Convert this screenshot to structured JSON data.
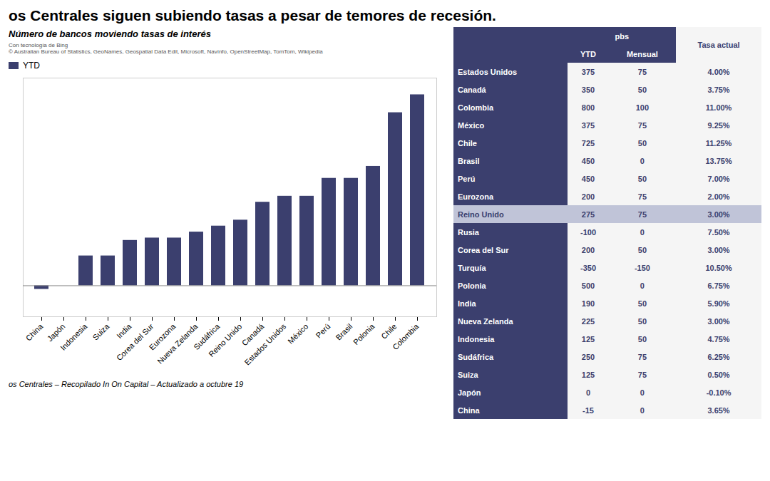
{
  "chart_data": [
    {
      "type": "bar",
      "title": "os Centrales siguen subiendo tasas a pesar de temores de recesión.",
      "subtitle": "Número de bancos moviendo tasas de interés",
      "caption": "os Centrales – Recopilado In On Capital – Actualizado a octubre 19",
      "annotations": [
        "Con tecnología de Bing\n© Australian Bureau of Statistics, GeoNames, Geospatial Data Edit, Microsoft, Navínfo, OpenStreetMap, TomTom, Wikipedia"
      ],
      "categories": [
        "China",
        "Japón",
        "Indonesia",
        "Suiza",
        "India",
        "Corea del Sur",
        "Eurozona",
        "Nueva Zelanda",
        "Sudáfrica",
        "Reino Unido",
        "Canadá",
        "Estados Unidos",
        "México",
        "Perú",
        "Brasil",
        "Polonia",
        "Chile",
        "Colombia"
      ],
      "series": [
        {
          "name": "YTD",
          "color": "#3b3f6e",
          "values": [
            -15,
            0,
            125,
            125,
            190,
            200,
            200,
            225,
            250,
            275,
            350,
            375,
            375,
            450,
            450,
            500,
            725,
            800
          ]
        }
      ],
      "ylim": [
        -130,
        870
      ],
      "tick_labels": "x",
      "legend": "upper left",
      "grid": false
    },
    {
      "type": "table",
      "group_header": "pbs",
      "columns": [
        "YTD",
        "Mensual"
      ],
      "rate_header": "Tasa actual",
      "rows": [
        "Estados Unidos",
        "Canadá",
        "Colombia",
        "México",
        "Chile",
        "Brasil",
        "Perú",
        "Eurozona",
        "Reino Unido",
        "Rusia",
        "Corea del Sur",
        "Turquía",
        "Polonia",
        "India",
        "Nueva Zelanda",
        "Indonesia",
        "Sudáfrica",
        "Suiza",
        "Japón",
        "China"
      ],
      "ytd": [
        375,
        350,
        800,
        375,
        725,
        450,
        450,
        200,
        275,
        -100,
        200,
        -350,
        500,
        190,
        225,
        125,
        250,
        125,
        0,
        -15
      ],
      "mensual": [
        75,
        50,
        100,
        75,
        50,
        0,
        50,
        75,
        75,
        0,
        50,
        -150,
        0,
        50,
        50,
        50,
        75,
        75,
        0,
        0
      ],
      "tasa": [
        4.0,
        3.75,
        11.0,
        9.25,
        11.25,
        13.75,
        7.0,
        2.0,
        3.0,
        7.5,
        3.0,
        10.5,
        6.75,
        5.9,
        3.0,
        4.75,
        6.25,
        0.5,
        -0.1,
        3.65
      ],
      "tasa_labels": [
        "4.00%",
        "3.75%",
        "11.00%",
        "9.25%",
        "11.25%",
        "13.75%",
        "7.00%",
        "2.00%",
        "3.00%",
        "7.50%",
        "3.00%",
        "10.50%",
        "6.75%",
        "5.90%",
        "3.00%",
        "4.75%",
        "6.25%",
        "0.50%",
        "-0.10%",
        "3.65%"
      ],
      "highlight": "Reino Unido",
      "color": "#3b3f6e",
      "highlight_color": "#c0c4d8"
    }
  ]
}
